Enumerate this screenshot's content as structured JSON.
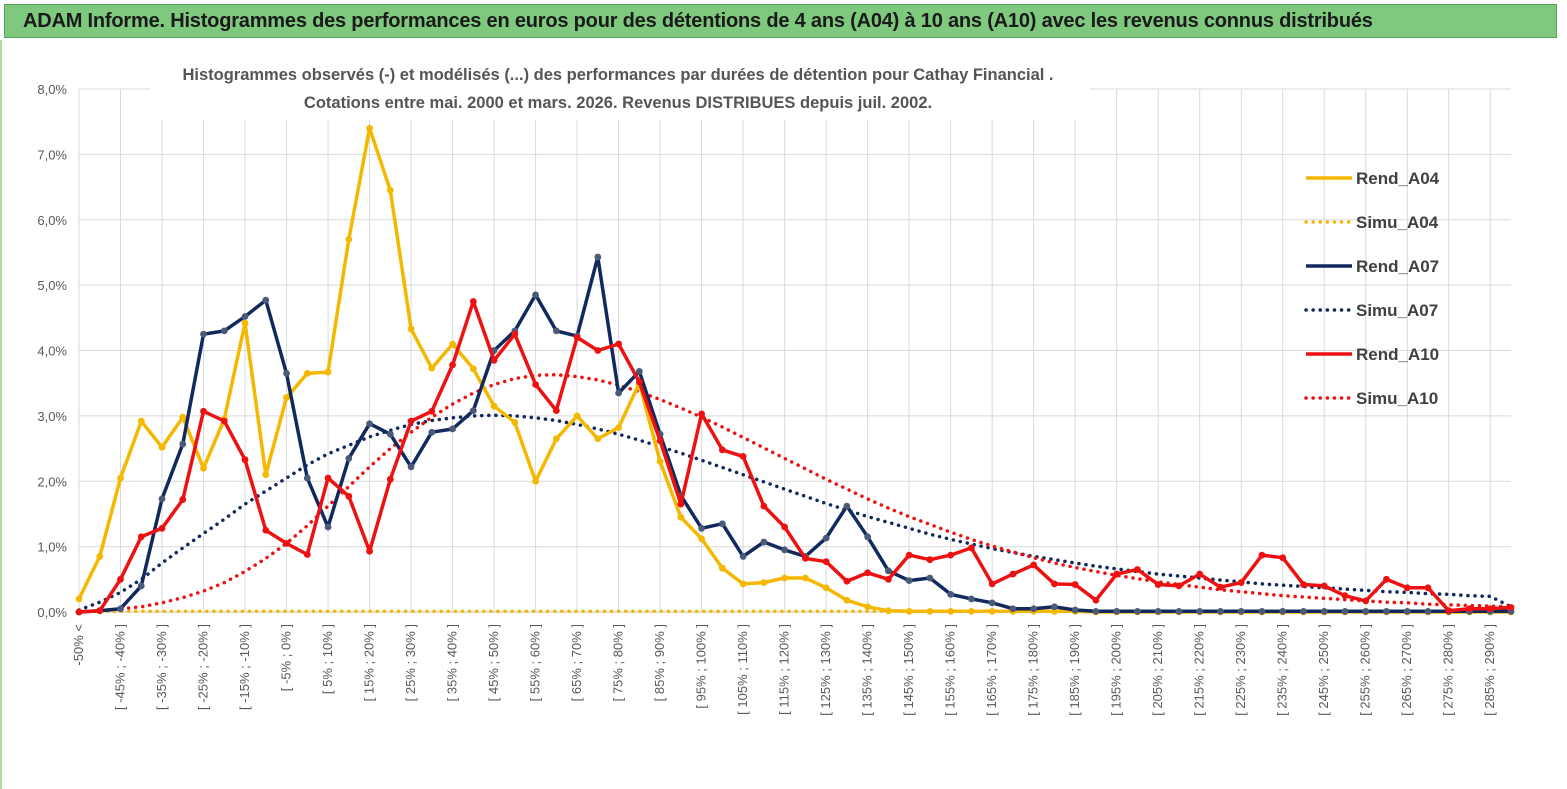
{
  "banner": {
    "title": "ADAM Informe. Histogrammes des performances en euros pour des détentions de 4 ans (A04) à 10 ans (A10) avec les revenus connus distribués"
  },
  "colors": {
    "banner_bg": "#7fc97f",
    "a04": "#f5b800",
    "a07": "#12295e",
    "a10": "#ee1111",
    "grid": "#d9d9d9"
  },
  "chart_data": {
    "type": "line",
    "title_line1": "Histogrammes observés (-) et modélisés (...) des performances par durées de détention pour Cathay Financial .",
    "title_line2": "Cotations entre mai. 2000 et mars. 2026. Revenus DISTRIBUES depuis juil. 2002.",
    "ylim": [
      0,
      8
    ],
    "y_unit": "%",
    "y_ticks": [
      "0,0%",
      "1,0%",
      "2,0%",
      "3,0%",
      "4,0%",
      "5,0%",
      "6,0%",
      "7,0%",
      "8,0%"
    ],
    "grid": true,
    "legend_position": "right",
    "x_tick_labels": [
      "-50% <",
      "[ -45% ; -40% ]",
      "[ -35% ; -30% ]",
      "[ -25% ; -20% ]",
      "[ -15% ; -10% ]",
      "[ -5% ; 0% ]",
      "[ 5% ; 10% ]",
      "[ 15% ; 20% ]",
      "[ 25% ; 30% ]",
      "[ 35% ; 40% ]",
      "[ 45% ; 50% ]",
      "[ 55% ; 60% ]",
      "[ 65% ; 70% ]",
      "[ 75% ; 80% ]",
      "[ 85% ; 90% ]",
      "[ 95% ; 100% ]",
      "[ 105% ; 110% ]",
      "[ 115% ; 120% ]",
      "[ 125% ; 130% ]",
      "[ 135% ; 140% ]",
      "[ 145% ; 150% ]",
      "[ 155% ; 160% ]",
      "[ 165% ; 170% ]",
      "[ 175% ; 180% ]",
      "[ 185% ; 190% ]",
      "[ 195% ; 200% ]",
      "[ 205% ; 210% ]",
      "[ 215% ; 220% ]",
      "[ 225% ; 230% ]",
      "[ 235% ; 240% ]",
      "[ 245% ; 250% ]",
      "[ 255% ; 260% ]",
      "[ 265% ; 270% ]",
      "[ 275% ; 280% ]",
      "[ 285% ; 290% ]"
    ],
    "n_bins": 70,
    "series": [
      {
        "name": "Rend_A04",
        "color": "#f5b800",
        "style": "solid",
        "markers": true,
        "values": [
          0.2,
          0.85,
          2.05,
          2.92,
          2.52,
          2.98,
          2.2,
          2.95,
          4.42,
          2.1,
          3.28,
          3.65,
          3.67,
          5.7,
          7.4,
          6.45,
          4.33,
          3.73,
          4.1,
          3.72,
          3.15,
          2.9,
          2.0,
          2.65,
          3.0,
          2.65,
          2.82,
          3.5,
          2.3,
          1.45,
          1.12,
          0.67,
          0.43,
          0.45,
          0.52,
          0.52,
          0.37,
          0.18,
          0.08,
          0.02,
          0.01,
          0.01,
          0.01,
          0.01,
          0.01,
          0.01,
          0.01,
          0.01,
          0.01,
          0,
          0,
          0,
          0,
          0,
          0,
          0,
          0,
          0,
          0,
          0,
          0,
          0,
          0,
          0,
          0,
          0,
          0,
          0,
          0,
          0
        ]
      },
      {
        "name": "Simu_A04",
        "color": "#f5b800",
        "style": "dotted",
        "markers": false,
        "values": [
          0.01,
          0.01,
          0.01,
          0.01,
          0.01,
          0.01,
          0.01,
          0.01,
          0.01,
          0.01,
          0.01,
          0.01,
          0.01,
          0.01,
          0.01,
          0.01,
          0.01,
          0.01,
          0.01,
          0.01,
          0.01,
          0.01,
          0.01,
          0.01,
          0.01,
          0.01,
          0.01,
          0.01,
          0.01,
          0.01,
          0.01,
          0.01,
          0.01,
          0.01,
          0.01,
          0.01,
          0.01,
          0.01,
          0.01,
          0.01,
          0.01,
          0.01,
          0.01,
          0.01,
          0.01,
          0.01,
          0.01,
          0.01,
          0.01,
          0.01,
          0.01,
          0.01,
          0.01,
          0.01,
          0.01,
          0.01,
          0.01,
          0.01,
          0.01,
          0.01,
          0.01,
          0.01,
          0.01,
          0.01,
          0.01,
          0.01,
          0.01,
          0.01,
          0.01,
          0.01
        ]
      },
      {
        "name": "Rend_A07",
        "color": "#12295e",
        "style": "solid",
        "markers": true,
        "values": [
          0,
          0.02,
          0.05,
          0.4,
          1.73,
          2.57,
          4.25,
          4.3,
          4.52,
          4.77,
          3.65,
          2.05,
          1.3,
          2.35,
          2.88,
          2.72,
          2.22,
          2.75,
          2.8,
          3.08,
          4.0,
          4.3,
          4.85,
          4.3,
          4.22,
          5.43,
          3.35,
          3.68,
          2.72,
          1.78,
          1.28,
          1.35,
          0.85,
          1.07,
          0.95,
          0.85,
          1.13,
          1.62,
          1.15,
          0.63,
          0.48,
          0.52,
          0.27,
          0.2,
          0.14,
          0.05,
          0.05,
          0.08,
          0.03,
          0.01,
          0.01,
          0.01,
          0.01,
          0.01,
          0.01,
          0.01,
          0.01,
          0.01,
          0.01,
          0.01,
          0.01,
          0.01,
          0.01,
          0.01,
          0.01,
          0.01,
          0.01,
          0.01,
          0.01,
          0.01
        ]
      },
      {
        "name": "Simu_A07",
        "color": "#12295e",
        "style": "dotted",
        "markers": false,
        "values": [
          0.03,
          0.15,
          0.3,
          0.5,
          0.75,
          0.98,
          1.2,
          1.42,
          1.65,
          1.85,
          2.05,
          2.25,
          2.42,
          2.55,
          2.68,
          2.78,
          2.87,
          2.93,
          2.97,
          3.0,
          3.01,
          3.0,
          2.97,
          2.93,
          2.87,
          2.8,
          2.72,
          2.63,
          2.53,
          2.43,
          2.32,
          2.21,
          2.1,
          1.99,
          1.88,
          1.77,
          1.66,
          1.56,
          1.46,
          1.37,
          1.28,
          1.19,
          1.11,
          1.04,
          0.97,
          0.91,
          0.85,
          0.8,
          0.75,
          0.7,
          0.66,
          0.62,
          0.58,
          0.55,
          0.52,
          0.49,
          0.46,
          0.43,
          0.41,
          0.39,
          0.37,
          0.35,
          0.33,
          0.31,
          0.3,
          0.28,
          0.27,
          0.25,
          0.24,
          0.08
        ]
      },
      {
        "name": "Rend_A10",
        "color": "#ee1111",
        "style": "solid",
        "markers": true,
        "values": [
          0.0,
          0.02,
          0.5,
          1.15,
          1.28,
          1.72,
          3.07,
          2.92,
          2.33,
          1.25,
          1.05,
          0.88,
          2.05,
          1.77,
          0.93,
          2.03,
          2.92,
          3.07,
          3.78,
          4.75,
          3.85,
          4.25,
          3.48,
          3.08,
          4.2,
          4.0,
          4.1,
          3.52,
          2.62,
          1.65,
          3.03,
          2.48,
          2.38,
          1.62,
          1.3,
          0.82,
          0.77,
          0.47,
          0.6,
          0.5,
          0.87,
          0.8,
          0.87,
          0.98,
          0.43,
          0.58,
          0.72,
          0.43,
          0.42,
          0.18,
          0.58,
          0.65,
          0.42,
          0.4,
          0.58,
          0.38,
          0.45,
          0.87,
          0.83,
          0.42,
          0.4,
          0.25,
          0.17,
          0.5,
          0.37,
          0.37,
          0.02,
          0.05,
          0.05,
          0.07
        ]
      },
      {
        "name": "Simu_A10",
        "color": "#ee1111",
        "style": "dotted",
        "markers": false,
        "values": [
          0.0,
          0.02,
          0.05,
          0.08,
          0.14,
          0.22,
          0.32,
          0.45,
          0.62,
          0.82,
          1.05,
          1.32,
          1.62,
          1.92,
          2.22,
          2.5,
          2.75,
          2.98,
          3.18,
          3.35,
          3.48,
          3.57,
          3.62,
          3.63,
          3.6,
          3.55,
          3.47,
          3.37,
          3.25,
          3.12,
          2.98,
          2.83,
          2.67,
          2.51,
          2.35,
          2.19,
          2.03,
          1.88,
          1.73,
          1.59,
          1.46,
          1.34,
          1.22,
          1.11,
          1.01,
          0.92,
          0.83,
          0.75,
          0.68,
          0.62,
          0.56,
          0.51,
          0.46,
          0.42,
          0.38,
          0.34,
          0.31,
          0.28,
          0.25,
          0.23,
          0.21,
          0.19,
          0.17,
          0.15,
          0.14,
          0.12,
          0.11,
          0.1,
          0.09,
          0.08
        ]
      }
    ]
  }
}
